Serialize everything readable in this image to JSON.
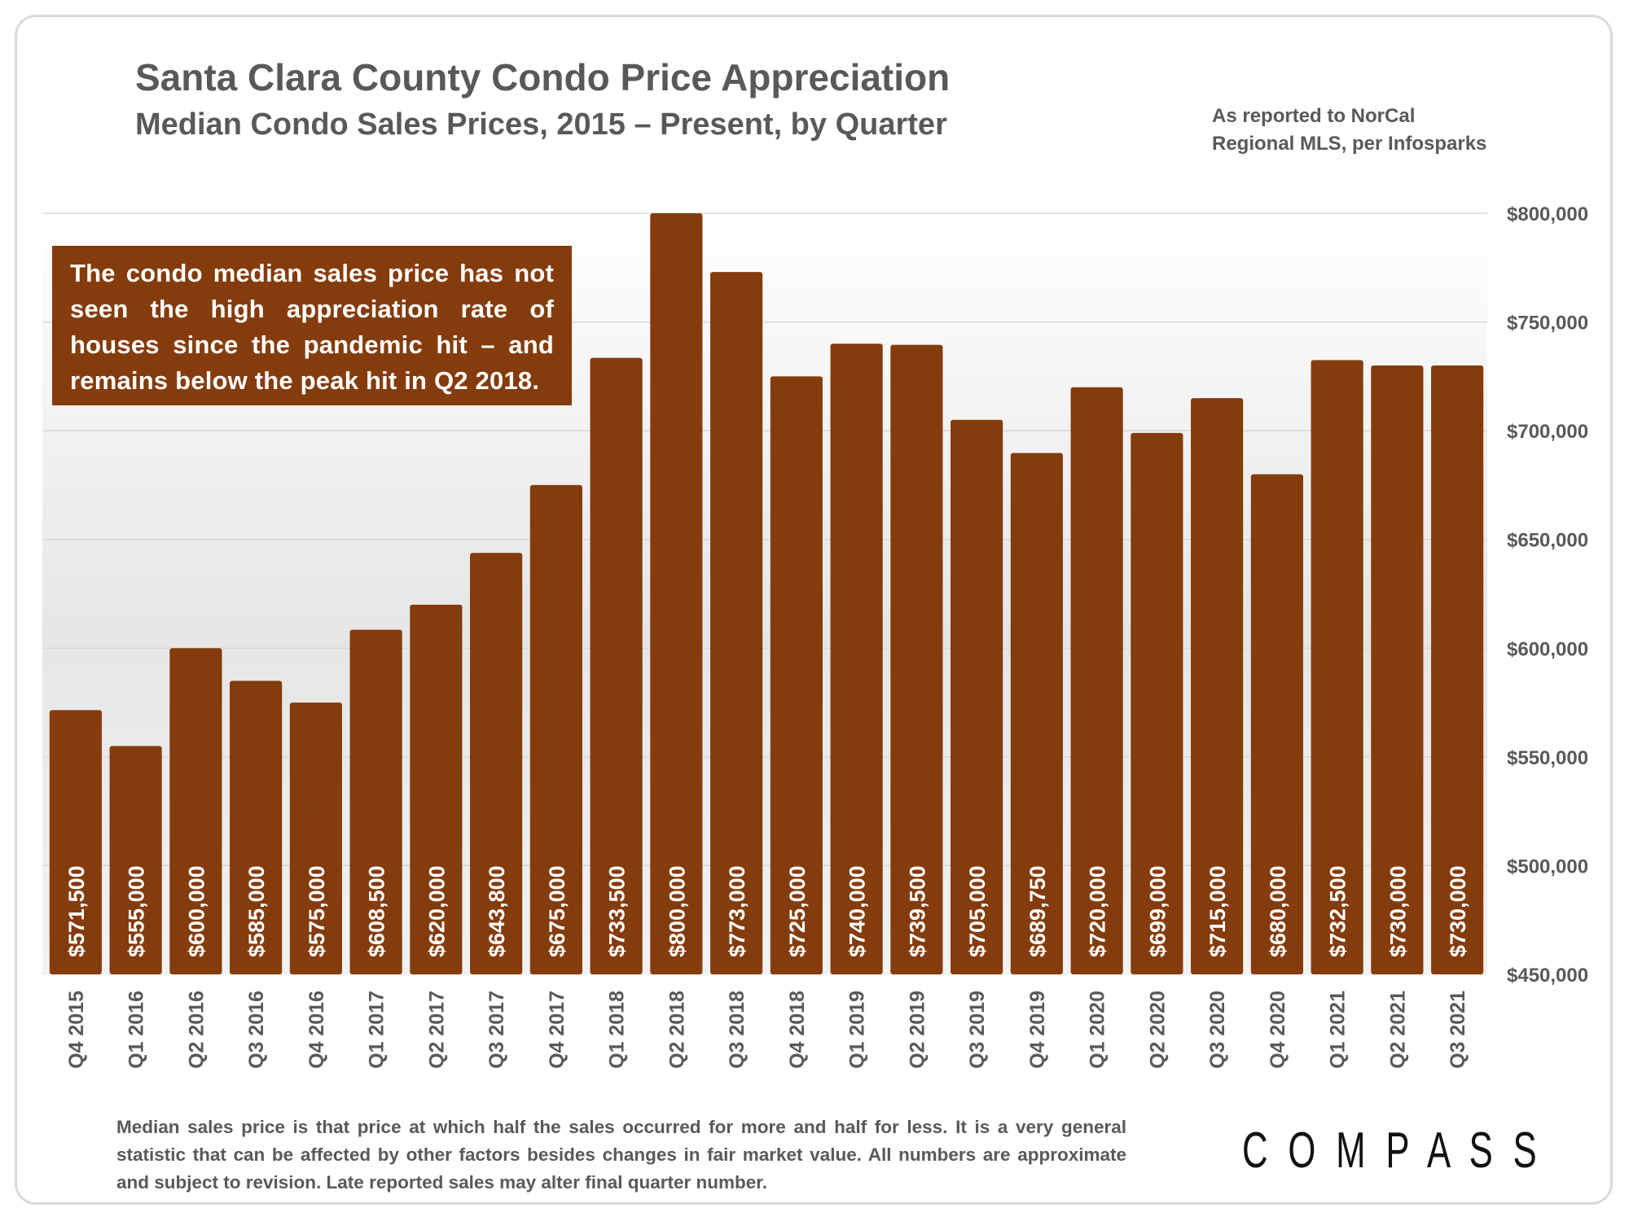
{
  "header": {
    "title": "Santa Clara County Condo Price Appreciation",
    "subtitle": "Median Condo Sales Prices, 2015 – Present, by Quarter",
    "source_line1": "As reported to NorCal",
    "source_line2": "Regional MLS, per Infosparks"
  },
  "callout": {
    "text": "The condo median sales price has not seen the high appreciation rate of houses since the pandemic hit – and remains below the peak hit in Q2 2018."
  },
  "footnote": {
    "text": "Median sales price is that price at which half the sales occurred for more and half for less. It is a very general statistic that can be affected by other factors besides changes in fair market value. All numbers are approximate and subject to revision. Late reported sales may alter final quarter number."
  },
  "logo": {
    "text": "COMPASS"
  },
  "colors": {
    "bar": "#843c0c",
    "text": "#595959",
    "grid": "#d9d9d9"
  },
  "chart_data": {
    "type": "bar",
    "categories": [
      "Q4 2015",
      "Q1 2016",
      "Q2 2016",
      "Q3 2016",
      "Q4 2016",
      "Q1 2017",
      "Q2 2017",
      "Q3 2017",
      "Q4 2017",
      "Q1 2018",
      "Q2 2018",
      "Q3 2018",
      "Q4 2018",
      "Q1 2019",
      "Q2 2019",
      "Q3 2019",
      "Q4 2019",
      "Q1 2020",
      "Q2 2020",
      "Q3 2020",
      "Q4 2020",
      "Q1 2021",
      "Q2 2021",
      "Q3 2021"
    ],
    "values": [
      571500,
      555000,
      600000,
      585000,
      575000,
      608500,
      620000,
      643800,
      675000,
      733500,
      800000,
      773000,
      725000,
      740000,
      739500,
      705000,
      689750,
      720000,
      699000,
      715000,
      680000,
      732500,
      730000,
      730000
    ],
    "data_labels": [
      "$571,500",
      "$555,000",
      "$600,000",
      "$585,000",
      "$575,000",
      "$608,500",
      "$620,000",
      "$643,800",
      "$675,000",
      "$733,500",
      "$800,000",
      "$773,000",
      "$725,000",
      "$740,000",
      "$739,500",
      "$705,000",
      "$689,750",
      "$720,000",
      "$699,000",
      "$715,000",
      "$680,000",
      "$732,500",
      "$730,000",
      "$730,000"
    ],
    "y_ticks": [
      450000,
      500000,
      550000,
      600000,
      650000,
      700000,
      750000,
      800000
    ],
    "y_tick_labels": [
      "$450,000",
      "$500,000",
      "$550,000",
      "$600,000",
      "$650,000",
      "$700,000",
      "$750,000",
      "$800,000"
    ],
    "ylim": [
      450000,
      800000
    ],
    "y_axis_side": "right",
    "grid": true,
    "legend": "none"
  }
}
